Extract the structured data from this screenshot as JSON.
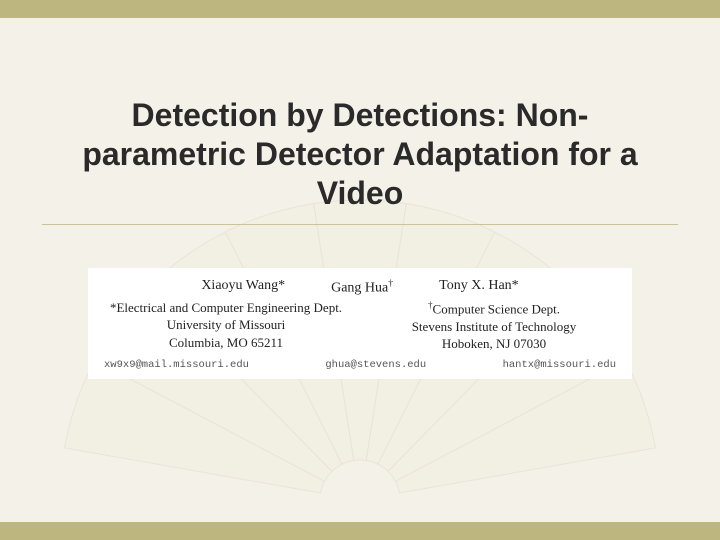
{
  "colors": {
    "bar": "#bdb67f",
    "background": "#f4f1e8",
    "title_text": "#2a2a2a",
    "divider": "#c9c29a",
    "box_bg": "#ffffff",
    "email_text": "#555555"
  },
  "title": "Detection by Detections: Non-parametric Detector Adaptation for a Video",
  "authors": {
    "names": [
      {
        "name": "Xiaoyu Wang",
        "mark": "*"
      },
      {
        "name": "Gang Hua",
        "mark": "†"
      },
      {
        "name": "Tony X. Han",
        "mark": "*"
      }
    ],
    "affiliations": {
      "left": {
        "mark": "*",
        "lines": [
          "Electrical and Computer Engineering Dept.",
          "University of Missouri",
          "Columbia, MO 65211"
        ]
      },
      "right": {
        "mark": "†",
        "lines": [
          "Computer Science Dept.",
          "Stevens Institute of Technology",
          "Hoboken, NJ 07030"
        ]
      }
    },
    "emails": [
      "xw9x9@mail.missouri.edu",
      "ghua@stevens.edu",
      "hantx@missouri.edu"
    ]
  },
  "fan": {
    "segments": 9,
    "stroke": "#b8b090",
    "fill": "#ece7d2"
  }
}
